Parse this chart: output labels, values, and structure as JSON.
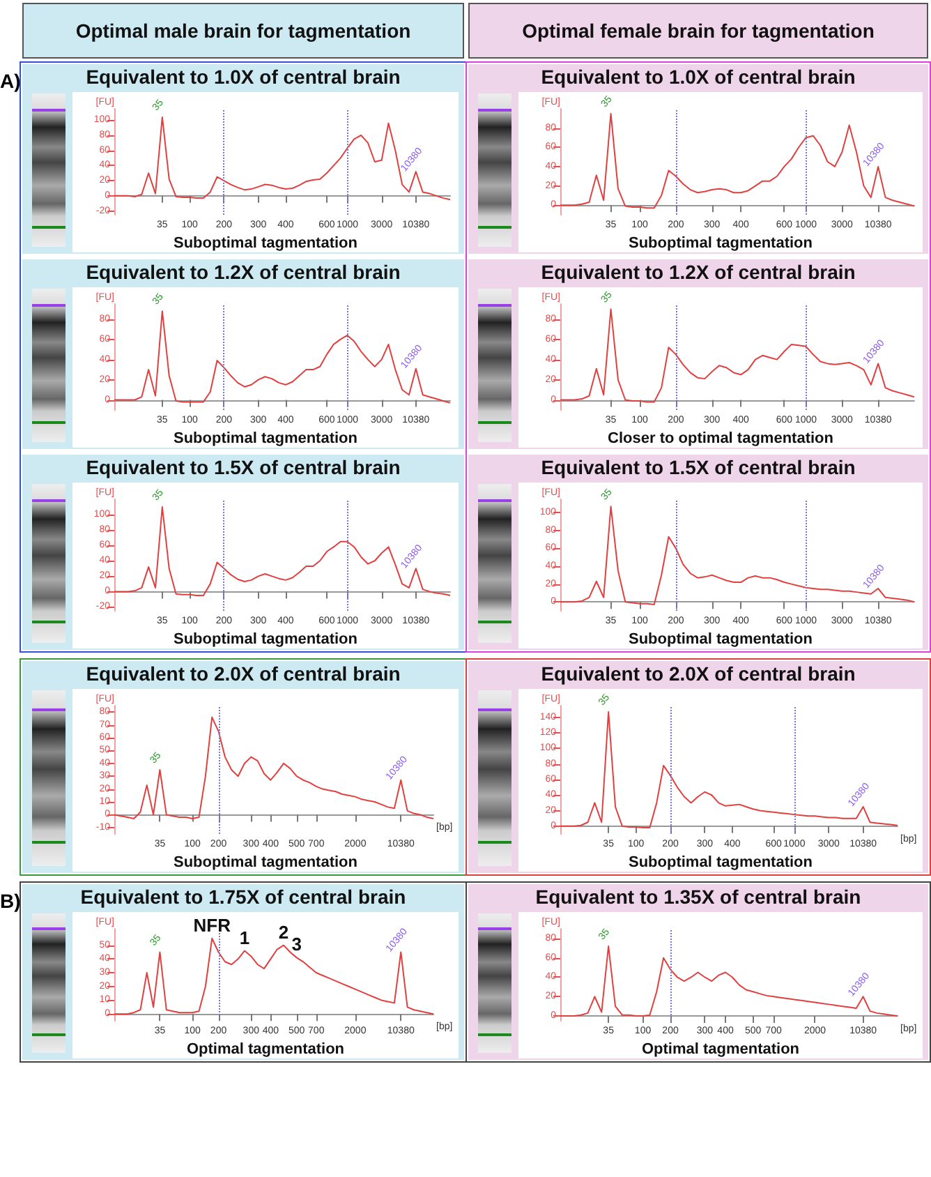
{
  "chart_data": [
    {
      "type": "line",
      "title": "Equivalent to 1.0X of central brain",
      "subtitle": "Optimal male brain for tagmentation",
      "ylabel": "[FU]",
      "marker": "none",
      "color": "#e04040",
      "categories": [
        null,
        null,
        null,
        null,
        null,
        null,
        null,
        "35",
        null,
        null,
        null,
        "100",
        null,
        null,
        null,
        null,
        "200",
        null,
        null,
        null,
        null,
        "300",
        null,
        null,
        null,
        "400",
        null,
        null,
        null,
        null,
        null,
        "600",
        null,
        null,
        "1000",
        null,
        null,
        null,
        null,
        "3000",
        null,
        null,
        null,
        null,
        "10380",
        null,
        null,
        null,
        null,
        null
      ],
      "values": [
        0,
        0,
        0,
        -1,
        2,
        30,
        3,
        104,
        22,
        -1,
        -2,
        -2,
        -3,
        -3,
        5,
        25,
        20,
        15,
        11,
        8,
        9,
        12,
        15,
        14,
        11,
        9,
        10,
        14,
        19,
        21,
        22,
        30,
        40,
        50,
        63,
        75,
        80,
        70,
        45,
        47,
        96,
        60,
        15,
        5,
        32,
        5,
        3,
        0,
        -3,
        -5
      ],
      "ylim": [
        -25,
        115
      ],
      "yticks": [
        -20,
        0,
        20,
        40,
        60,
        80,
        100
      ],
      "ref_lines": [
        {
          "axis": "x",
          "value": "200"
        },
        {
          "axis": "x",
          "value": "1000"
        }
      ],
      "annotations": [
        "Suboptimal tagmentation",
        "A)",
        {
          "text": "35",
          "x": "35",
          "y": 104
        },
        {
          "text": "10380",
          "x": "10380",
          "y": 32
        }
      ]
    },
    {
      "type": "line",
      "title": "Equivalent to 1.0X of central brain",
      "subtitle": "Optimal female brain for tagmentation",
      "ylabel": "[FU]",
      "marker": "none",
      "color": "#e04040",
      "categories": [
        null,
        null,
        null,
        null,
        null,
        null,
        null,
        "35",
        null,
        null,
        null,
        "100",
        null,
        null,
        null,
        null,
        "200",
        null,
        null,
        null,
        null,
        "300",
        null,
        null,
        null,
        "400",
        null,
        null,
        null,
        null,
        null,
        "600",
        null,
        null,
        "1000",
        null,
        null,
        null,
        null,
        "3000",
        null,
        null,
        null,
        null,
        "10380",
        null,
        null,
        null,
        null,
        null
      ],
      "values": [
        0,
        0,
        0,
        1,
        3,
        31,
        5,
        95,
        17,
        -1,
        -2,
        -2,
        -3,
        -3,
        10,
        36,
        30,
        22,
        16,
        13,
        14,
        16,
        17,
        16,
        13,
        13,
        15,
        20,
        25,
        25,
        30,
        40,
        48,
        60,
        70,
        72,
        62,
        45,
        40,
        55,
        83,
        55,
        20,
        8,
        40,
        8,
        5,
        3,
        1,
        -1
      ],
      "ylim": [
        -10,
        100
      ],
      "yticks": [
        0,
        20,
        40,
        60,
        80
      ],
      "ref_lines": [
        {
          "axis": "x",
          "value": "200"
        },
        {
          "axis": "x",
          "value": "1000"
        }
      ],
      "annotations": [
        "Suboptimal tagmentation",
        {
          "text": "35",
          "x": "35",
          "y": 95
        },
        {
          "text": "10380",
          "x": "10380",
          "y": 40
        }
      ]
    },
    {
      "type": "line",
      "title": "Equivalent to 1.2X of central brain",
      "ylabel": "[FU]",
      "marker": "none",
      "color": "#e04040",
      "categories": [
        null,
        null,
        null,
        null,
        null,
        null,
        null,
        "35",
        null,
        null,
        null,
        "100",
        null,
        null,
        null,
        null,
        "200",
        null,
        null,
        null,
        null,
        "300",
        null,
        null,
        null,
        "400",
        null,
        null,
        null,
        null,
        null,
        "600",
        null,
        null,
        "1000",
        null,
        null,
        null,
        null,
        "3000",
        null,
        null,
        null,
        null,
        "10380",
        null,
        null,
        null,
        null,
        null
      ],
      "values": [
        0,
        0,
        0,
        0,
        3,
        30,
        4,
        88,
        24,
        -1,
        -2,
        -2,
        -2,
        -2,
        8,
        39,
        32,
        24,
        17,
        13,
        15,
        20,
        23,
        21,
        17,
        15,
        18,
        24,
        30,
        30,
        33,
        45,
        55,
        60,
        64,
        58,
        48,
        40,
        33,
        40,
        55,
        30,
        10,
        5,
        31,
        5,
        3,
        1,
        -1,
        -3
      ],
      "ylim": [
        -10,
        95
      ],
      "yticks": [
        0,
        20,
        40,
        60,
        80
      ],
      "ref_lines": [
        {
          "axis": "x",
          "value": "200"
        },
        {
          "axis": "x",
          "value": "1000"
        }
      ],
      "annotations": [
        "Suboptimal tagmentation",
        {
          "text": "35",
          "x": "35",
          "y": 88
        },
        {
          "text": "10380",
          "x": "10380",
          "y": 31
        }
      ]
    },
    {
      "type": "line",
      "title": "Equivalent to 1.2X of central brain",
      "ylabel": "[FU]",
      "marker": "none",
      "color": "#e04040",
      "categories": [
        null,
        null,
        null,
        null,
        null,
        null,
        null,
        "35",
        null,
        null,
        null,
        "100",
        null,
        null,
        null,
        null,
        "200",
        null,
        null,
        null,
        null,
        "300",
        null,
        null,
        null,
        "400",
        null,
        null,
        null,
        null,
        null,
        "600",
        null,
        null,
        "1000",
        null,
        null,
        null,
        null,
        "3000",
        null,
        null,
        null,
        null,
        "10380",
        null,
        null,
        null,
        null,
        null
      ],
      "values": [
        0,
        0,
        0,
        1,
        4,
        31,
        5,
        90,
        20,
        0,
        -1,
        -1,
        -2,
        -2,
        12,
        52,
        45,
        35,
        27,
        22,
        21,
        28,
        34,
        32,
        27,
        25,
        30,
        40,
        44,
        42,
        40,
        48,
        55,
        54,
        53,
        45,
        38,
        36,
        35,
        36,
        37,
        34,
        30,
        15,
        36,
        12,
        9,
        7,
        5,
        3
      ],
      "ylim": [
        -10,
        95
      ],
      "yticks": [
        0,
        20,
        40,
        60,
        80
      ],
      "ref_lines": [
        {
          "axis": "x",
          "value": "200"
        },
        {
          "axis": "x",
          "value": "1000"
        }
      ],
      "annotations": [
        "Closer to optimal tagmentation",
        {
          "text": "35",
          "x": "35",
          "y": 90
        },
        {
          "text": "10380",
          "x": "10380",
          "y": 36
        }
      ]
    },
    {
      "type": "line",
      "title": "Equivalent to 1.5X of central brain",
      "ylabel": "[FU]",
      "marker": "none",
      "color": "#e04040",
      "categories": [
        null,
        null,
        null,
        null,
        null,
        null,
        null,
        "35",
        null,
        null,
        null,
        "100",
        null,
        null,
        null,
        null,
        "200",
        null,
        null,
        null,
        null,
        "300",
        null,
        null,
        null,
        "400",
        null,
        null,
        null,
        null,
        null,
        "600",
        null,
        null,
        "1000",
        null,
        null,
        null,
        null,
        "3000",
        null,
        null,
        null,
        null,
        "10380",
        null,
        null,
        null,
        null,
        null
      ],
      "values": [
        0,
        0,
        0,
        1,
        5,
        32,
        5,
        110,
        30,
        -3,
        -4,
        -4,
        -5,
        -5,
        10,
        38,
        30,
        22,
        16,
        13,
        15,
        20,
        23,
        20,
        17,
        15,
        18,
        25,
        33,
        33,
        40,
        52,
        58,
        65,
        65,
        58,
        45,
        36,
        40,
        50,
        58,
        35,
        10,
        5,
        30,
        3,
        0,
        -2,
        -3,
        -5
      ],
      "ylim": [
        -25,
        120
      ],
      "yticks": [
        -20,
        0,
        20,
        40,
        60,
        80,
        100
      ],
      "ref_lines": [
        {
          "axis": "x",
          "value": "200"
        },
        {
          "axis": "x",
          "value": "1000"
        }
      ],
      "annotations": [
        "Suboptimal tagmentation",
        {
          "text": "35",
          "x": "35",
          "y": 110
        },
        {
          "text": "10380",
          "x": "10380",
          "y": 30
        }
      ]
    },
    {
      "type": "line",
      "title": "Equivalent to 1.5X of central brain",
      "ylabel": "[FU]",
      "marker": "none",
      "color": "#e04040",
      "categories": [
        null,
        null,
        null,
        null,
        null,
        null,
        null,
        "35",
        null,
        null,
        null,
        "100",
        null,
        null,
        null,
        null,
        "200",
        null,
        null,
        null,
        null,
        "300",
        null,
        null,
        null,
        "400",
        null,
        null,
        null,
        null,
        null,
        "600",
        null,
        null,
        "1000",
        null,
        null,
        null,
        null,
        "3000",
        null,
        null,
        null,
        null,
        "10380",
        null,
        null,
        null,
        null,
        null
      ],
      "values": [
        0,
        0,
        0,
        1,
        5,
        23,
        5,
        107,
        35,
        0,
        -1,
        -2,
        -2,
        -3,
        30,
        73,
        60,
        42,
        32,
        27,
        28,
        30,
        27,
        24,
        22,
        22,
        27,
        29,
        27,
        27,
        25,
        22,
        20,
        18,
        16,
        15,
        14,
        14,
        13,
        12,
        12,
        11,
        10,
        9,
        15,
        5,
        4,
        3,
        2,
        0
      ],
      "ylim": [
        -10,
        115
      ],
      "yticks": [
        0,
        20,
        40,
        60,
        80,
        100
      ],
      "ref_lines": [
        {
          "axis": "x",
          "value": "200"
        },
        {
          "axis": "x",
          "value": "1000"
        }
      ],
      "annotations": [
        "Suboptimal tagmentation",
        {
          "text": "35",
          "x": "35",
          "y": 107
        },
        {
          "text": "10380",
          "x": "10380",
          "y": 15
        }
      ]
    },
    {
      "type": "line",
      "title": "Equivalent to 2.0X of central brain",
      "ylabel": "[FU]",
      "xlabel": "[bp]",
      "marker": "none",
      "color": "#e04040",
      "categories": [
        null,
        null,
        null,
        null,
        null,
        null,
        null,
        "35",
        null,
        null,
        null,
        null,
        "100",
        null,
        null,
        null,
        "200",
        null,
        null,
        null,
        null,
        "300",
        null,
        null,
        "400",
        null,
        null,
        null,
        "500",
        null,
        null,
        "700",
        null,
        null,
        null,
        null,
        null,
        "2000",
        null,
        null,
        null,
        null,
        null,
        null,
        "10380",
        null,
        null,
        null,
        null,
        null
      ],
      "values": [
        0,
        -1,
        -2,
        -3,
        2,
        23,
        0,
        35,
        0,
        -1,
        -2,
        -2,
        -3,
        -2,
        30,
        76,
        65,
        45,
        35,
        30,
        40,
        45,
        42,
        32,
        27,
        33,
        40,
        36,
        30,
        27,
        25,
        22,
        20,
        19,
        18,
        16,
        15,
        14,
        12,
        11,
        10,
        8,
        6,
        5,
        27,
        3,
        1,
        0,
        -2,
        -3
      ],
      "ylim": [
        -15,
        85
      ],
      "yticks": [
        -10,
        0,
        10,
        20,
        30,
        40,
        50,
        60,
        70,
        80
      ],
      "ref_lines": [
        {
          "axis": "x",
          "value": "200"
        }
      ],
      "annotations": [
        "Suboptimal tagmentation",
        {
          "text": "35",
          "x": "35",
          "y": 35
        },
        {
          "text": "10380",
          "x": "10380",
          "y": 27
        }
      ]
    },
    {
      "type": "line",
      "title": "Equivalent to 2.0X of central brain",
      "ylabel": "[FU]",
      "xlabel": "[bp]",
      "marker": "none",
      "color": "#e04040",
      "categories": [
        null,
        null,
        null,
        null,
        null,
        null,
        null,
        "35",
        null,
        null,
        null,
        "100",
        null,
        null,
        null,
        null,
        "200",
        null,
        null,
        null,
        null,
        "300",
        null,
        null,
        null,
        "400",
        null,
        null,
        null,
        null,
        null,
        "600",
        null,
        null,
        "1000",
        null,
        null,
        null,
        null,
        "3000",
        null,
        null,
        null,
        null,
        "10380",
        null,
        null,
        null,
        null,
        null
      ],
      "values": [
        0,
        0,
        0,
        1,
        5,
        30,
        5,
        147,
        25,
        0,
        -1,
        -1,
        -2,
        -2,
        30,
        78,
        65,
        50,
        38,
        30,
        38,
        44,
        40,
        30,
        26,
        27,
        28,
        25,
        22,
        20,
        19,
        18,
        17,
        16,
        15,
        14,
        13,
        13,
        12,
        11,
        11,
        10,
        10,
        10,
        25,
        5,
        4,
        3,
        2,
        1
      ],
      "ylim": [
        -10,
        155
      ],
      "yticks": [
        0,
        20,
        40,
        60,
        80,
        100,
        120,
        140
      ],
      "ref_lines": [
        {
          "axis": "x",
          "value": "200"
        },
        {
          "axis": "x",
          "value": "1000"
        }
      ],
      "annotations": [
        "Suboptimal tagmentation",
        {
          "text": "35",
          "x": "35",
          "y": 147
        },
        {
          "text": "10380",
          "x": "10380",
          "y": 25
        }
      ]
    },
    {
      "type": "line",
      "title": "Equivalent to 1.75X of central brain",
      "ylabel": "[FU]",
      "xlabel": "[bp]",
      "marker": "none",
      "color": "#e04040",
      "categories": [
        null,
        null,
        null,
        null,
        null,
        null,
        null,
        "35",
        null,
        null,
        null,
        null,
        "100",
        null,
        null,
        null,
        "200",
        null,
        null,
        null,
        null,
        "300",
        null,
        null,
        "400",
        null,
        null,
        null,
        "500",
        null,
        null,
        "700",
        null,
        null,
        null,
        null,
        null,
        "2000",
        null,
        null,
        null,
        null,
        null,
        null,
        "10380",
        null,
        null,
        null,
        null,
        null
      ],
      "values": [
        0,
        0,
        0,
        1,
        3,
        30,
        5,
        45,
        3,
        2,
        1,
        1,
        1,
        2,
        20,
        55,
        45,
        38,
        36,
        40,
        46,
        42,
        36,
        33,
        40,
        47,
        50,
        45,
        41,
        38,
        34,
        30,
        28,
        26,
        24,
        22,
        20,
        18,
        16,
        14,
        12,
        10,
        9,
        8,
        45,
        5,
        3,
        2,
        1,
        0
      ],
      "ylim": [
        -5,
        62
      ],
      "yticks": [
        0,
        10,
        20,
        30,
        40,
        50
      ],
      "ref_lines": [
        {
          "axis": "x",
          "value": "200"
        }
      ],
      "annotations": [
        "Optimal tagmentation",
        "B)",
        {
          "text": "NFR",
          "y": 55
        },
        {
          "text": "1",
          "y": 46
        },
        {
          "text": "2",
          "y": 50
        },
        {
          "text": "3",
          "y": 41
        },
        {
          "text": "35",
          "x": "35",
          "y": 45
        },
        {
          "text": "10380",
          "x": "10380",
          "y": 45
        }
      ]
    },
    {
      "type": "line",
      "title": "Equivalent to 1.35X of central brain",
      "ylabel": "[FU]",
      "xlabel": "[bp]",
      "marker": "none",
      "color": "#e04040",
      "categories": [
        null,
        null,
        null,
        null,
        null,
        null,
        null,
        "35",
        null,
        null,
        null,
        null,
        "100",
        null,
        null,
        null,
        "200",
        null,
        null,
        null,
        null,
        "300",
        null,
        null,
        "400",
        null,
        null,
        null,
        "500",
        null,
        null,
        "700",
        null,
        null,
        null,
        null,
        null,
        "2000",
        null,
        null,
        null,
        null,
        null,
        null,
        "10380",
        null,
        null,
        null,
        null,
        null
      ],
      "values": [
        0,
        0,
        0,
        1,
        3,
        20,
        4,
        72,
        10,
        1,
        1,
        0,
        0,
        1,
        25,
        60,
        48,
        40,
        36,
        40,
        45,
        40,
        36,
        42,
        45,
        40,
        32,
        27,
        25,
        23,
        21,
        20,
        19,
        18,
        17,
        16,
        15,
        14,
        13,
        12,
        11,
        10,
        9,
        8,
        20,
        5,
        3,
        2,
        1,
        0
      ],
      "ylim": [
        -5,
        90
      ],
      "yticks": [
        0,
        20,
        40,
        60,
        80
      ],
      "ref_lines": [
        {
          "axis": "x",
          "value": "200"
        }
      ],
      "annotations": [
        "Optimal tagmentation",
        {
          "text": "35",
          "x": "35",
          "y": 72
        },
        {
          "text": "10380",
          "x": "10380",
          "y": 20
        }
      ]
    }
  ]
}
